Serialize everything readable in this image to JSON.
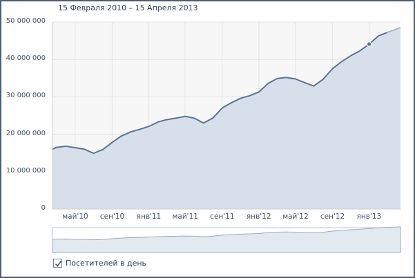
{
  "header": {
    "date_range": "15 Февраля 2010 – 15 Апреля 2013"
  },
  "legend": {
    "label": "Посетителей в день",
    "checked": true
  },
  "colors": {
    "line": "#5b7392",
    "fill": "#d7e0ea",
    "plot_bg": "#f7f7f7",
    "grid": "#e4e4e4",
    "mini_fill": "#e3e9f0"
  },
  "chart_data": {
    "type": "area",
    "title": "",
    "xlabel": "",
    "ylabel": "",
    "ylim": [
      0,
      50000000
    ],
    "grid": true,
    "y_ticks": [
      {
        "value": 50000000,
        "label": "50 000 000"
      },
      {
        "value": 40000000,
        "label": "40 000 000"
      },
      {
        "value": 30000000,
        "label": "30 000 000"
      },
      {
        "value": 20000000,
        "label": "20 000 000"
      },
      {
        "value": 10000000,
        "label": "10 000 000"
      },
      {
        "value": 0,
        "label": "0"
      }
    ],
    "x_ticks": [
      {
        "date": "2010-05-01",
        "label": "май'10"
      },
      {
        "date": "2010-09-01",
        "label": "сен'10"
      },
      {
        "date": "2011-01-01",
        "label": "янв'11"
      },
      {
        "date": "2011-05-01",
        "label": "май'11"
      },
      {
        "date": "2011-09-01",
        "label": "сен'11"
      },
      {
        "date": "2012-01-01",
        "label": "янв'12"
      },
      {
        "date": "2012-05-01",
        "label": "май'12"
      },
      {
        "date": "2012-09-01",
        "label": "сен'12"
      },
      {
        "date": "2013-01-01",
        "label": "янв'13"
      }
    ],
    "x_range": [
      "2010-02-15",
      "2013-04-15"
    ],
    "series": [
      {
        "name": "",
        "points": [
          [
            "2010-02-15",
            16000000
          ],
          [
            "2010-03-01",
            16500000
          ],
          [
            "2010-04-01",
            16800000
          ],
          [
            "2010-05-01",
            16400000
          ],
          [
            "2010-06-01",
            16000000
          ],
          [
            "2010-07-01",
            14900000
          ],
          [
            "2010-08-01",
            15900000
          ],
          [
            "2010-09-01",
            17800000
          ],
          [
            "2010-10-01",
            19500000
          ],
          [
            "2010-11-01",
            20600000
          ],
          [
            "2010-12-01",
            21300000
          ],
          [
            "2011-01-01",
            22100000
          ],
          [
            "2011-02-01",
            23300000
          ],
          [
            "2011-03-01",
            23900000
          ],
          [
            "2011-04-01",
            24300000
          ],
          [
            "2011-05-01",
            24800000
          ],
          [
            "2011-06-01",
            24300000
          ],
          [
            "2011-07-01",
            23000000
          ],
          [
            "2011-08-01",
            24300000
          ],
          [
            "2011-09-01",
            27000000
          ],
          [
            "2011-10-01",
            28400000
          ],
          [
            "2011-11-01",
            29600000
          ],
          [
            "2011-12-01",
            30300000
          ],
          [
            "2012-01-01",
            31300000
          ],
          [
            "2012-02-01",
            33600000
          ],
          [
            "2012-03-01",
            34900000
          ],
          [
            "2012-04-01",
            35200000
          ],
          [
            "2012-05-01",
            34800000
          ],
          [
            "2012-06-01",
            33800000
          ],
          [
            "2012-07-01",
            32900000
          ],
          [
            "2012-08-01",
            34700000
          ],
          [
            "2012-09-01",
            37500000
          ],
          [
            "2012-10-01",
            39400000
          ],
          [
            "2012-11-01",
            41000000
          ],
          [
            "2012-12-01",
            42300000
          ],
          [
            "2013-01-01",
            44100000
          ],
          [
            "2013-02-01",
            46300000
          ],
          [
            "2013-03-01",
            47200000
          ],
          [
            "2013-04-15",
            48500000
          ]
        ],
        "highlight": [
          "2013-01-01",
          44100000
        ]
      }
    ]
  }
}
